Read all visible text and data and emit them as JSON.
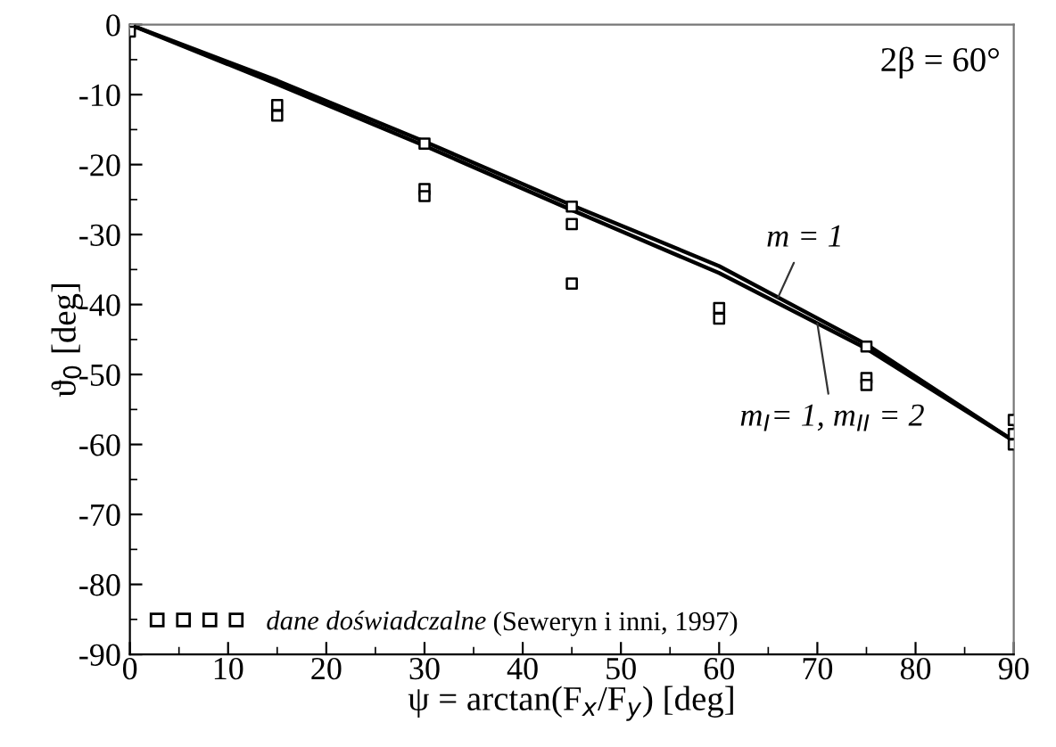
{
  "chart_data": {
    "type": "line",
    "xlabel": "ψ = arctan(F$_{x}$/F$_{y}$) [deg]",
    "ylabel": "ϑ$_{0}$ [deg]",
    "xlim": [
      0,
      90
    ],
    "xticks": [
      0,
      10,
      20,
      30,
      40,
      50,
      60,
      70,
      80,
      90
    ],
    "ylim": [
      -90,
      0
    ],
    "yticks": [
      -90,
      -80,
      -70,
      -60,
      -50,
      -40,
      -30,
      -20,
      -10,
      0
    ],
    "grid": false,
    "legend": "bottom left",
    "line_style": "solid",
    "annotations": [
      "2β = 60°",
      "(Seweryn i inni, 1997)"
    ],
    "series": [
      {
        "name": "m = 1",
        "type": "line",
        "color": "#000000",
        "marker": "none",
        "x": [
          0,
          15,
          30,
          45,
          60,
          75,
          90
        ],
        "values": [
          0,
          -8,
          -16.7,
          -25.8,
          -34.5,
          -45.7,
          -59.5
        ]
      },
      {
        "name": "m$_{I}$= 1, m$_{II}$ = 2",
        "type": "line",
        "color": "#000000",
        "marker": "none",
        "x": [
          0,
          15,
          30,
          45,
          60,
          75,
          90
        ],
        "values": [
          0,
          -8.5,
          -17.3,
          -26.5,
          -35.5,
          -46.3,
          -59.5
        ]
      },
      {
        "name": "dane doświadczalne",
        "type": "scatter",
        "color": "#000000",
        "marker": "square",
        "x": [
          0,
          0,
          15,
          15,
          30,
          30,
          30,
          45,
          45,
          45,
          60,
          60,
          75,
          75,
          75,
          90,
          90,
          90
        ],
        "values": [
          0,
          -1,
          -11.5,
          -13,
          -17,
          -23.5,
          -24.5,
          -26,
          -28.5,
          -37,
          -40.5,
          -42,
          -46,
          -50.5,
          -51.5,
          -56.5,
          -58.5,
          -60
        ]
      }
    ]
  }
}
